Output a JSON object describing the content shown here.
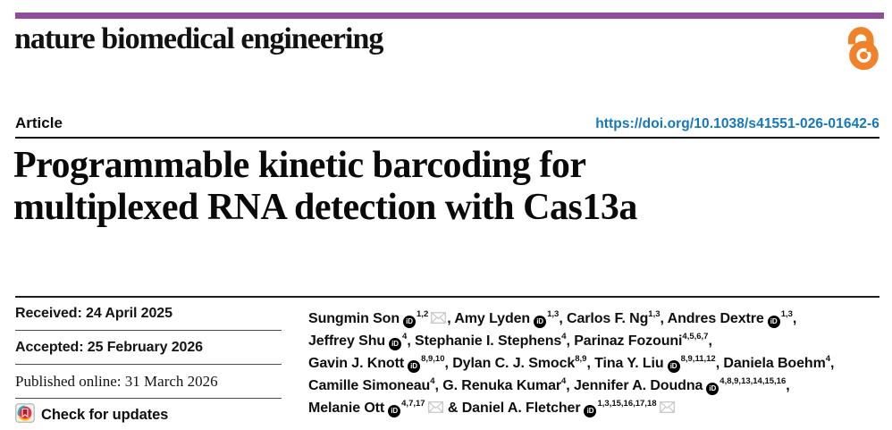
{
  "masthead": {
    "journal_name": "nature biomedical engineering",
    "accent_color": "#8e4e9c",
    "open_access_icon": "open-access-lock-icon",
    "open_access_color": "#f0832a"
  },
  "header": {
    "article_label": "Article",
    "doi_text": "https://doi.org/10.1038/s41551-026-01642-6",
    "doi_color": "#1478bd"
  },
  "title": {
    "lines": [
      "Programmable kinetic barcoding for",
      "multiplexed RNA detection with Cas13a"
    ]
  },
  "history": {
    "rows": [
      {
        "label": "Received",
        "date": "24 April 2025",
        "font": "sans"
      },
      {
        "label": "Accepted",
        "date": "25 February 2026",
        "font": "sans"
      },
      {
        "label": "Published online",
        "date": "31 March 2026",
        "font": "serif"
      }
    ],
    "check_for_updates_label": "Check for updates",
    "crossmark_icon": "crossmark-icon",
    "crossmark_colors": {
      "circle": "#e03548",
      "teal": "#2bb0c2",
      "yellow": "#ffc20e",
      "bookmark": "#a61e2e"
    }
  },
  "authors": {
    "orcid_icon": "orcid-id-icon",
    "email_icon": "envelope-icon",
    "envelope_color": "#c8c8c8",
    "lines": [
      [
        {
          "name": "Sungmin Son",
          "orcid": true,
          "sup": "1,2",
          "mail": true,
          "after": ","
        },
        {
          "name": "Amy Lyden",
          "orcid": true,
          "sup": "1,3",
          "mail": false,
          "after": ","
        },
        {
          "name": "Carlos F. Ng",
          "orcid": false,
          "sup": "1,3",
          "mail": false,
          "after": ","
        },
        {
          "name": "Andres Dextre",
          "orcid": true,
          "sup": "1,3",
          "mail": false,
          "after": ","
        }
      ],
      [
        {
          "name": "Jeffrey Shu",
          "orcid": true,
          "sup": "4",
          "mail": false,
          "after": ","
        },
        {
          "name": "Stephanie I. Stephens",
          "orcid": false,
          "sup": "4",
          "mail": false,
          "after": ","
        },
        {
          "name": "Parinaz Fozouni",
          "orcid": false,
          "sup": "4,5,6,7",
          "mail": false,
          "after": ","
        }
      ],
      [
        {
          "name": "Gavin J. Knott",
          "orcid": true,
          "sup": "8,9,10",
          "mail": false,
          "after": ","
        },
        {
          "name": "Dylan C. J. Smock",
          "orcid": false,
          "sup": "8,9",
          "mail": false,
          "after": ","
        },
        {
          "name": "Tina Y. Liu",
          "orcid": true,
          "sup": "8,9,11,12",
          "mail": false,
          "after": ","
        },
        {
          "name": "Daniela Boehm",
          "orcid": false,
          "sup": "4",
          "mail": false,
          "after": ","
        }
      ],
      [
        {
          "name": "Camille Simoneau",
          "orcid": false,
          "sup": "4",
          "mail": false,
          "after": ","
        },
        {
          "name": "G. Renuka Kumar",
          "orcid": false,
          "sup": "4",
          "mail": false,
          "after": ","
        },
        {
          "name": "Jennifer A. Doudna",
          "orcid": true,
          "sup": "4,8,9,13,14,15,16",
          "mail": false,
          "after": ","
        }
      ],
      [
        {
          "name": "Melanie Ott",
          "orcid": true,
          "sup": "4,7,17",
          "mail": true,
          "after": " &"
        },
        {
          "name": "Daniel A. Fletcher",
          "orcid": true,
          "sup": "1,3,15,16,17,18",
          "mail": true,
          "after": ""
        }
      ]
    ]
  }
}
